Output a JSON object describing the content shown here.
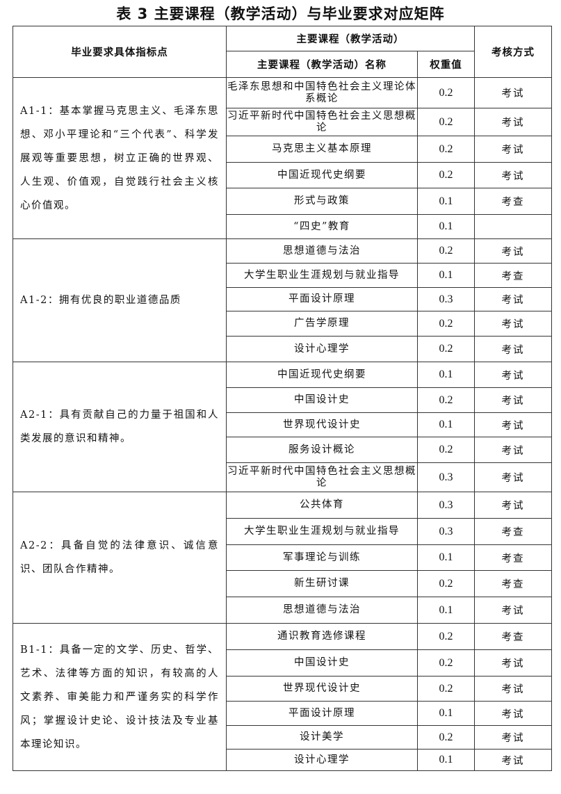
{
  "title": "表 3  主要课程（教学活动）与毕业要求对应矩阵",
  "headers": {
    "indicator": "毕业要求具体指标点",
    "courses_group": "主要课程（教学活动）",
    "course_name": "主要课程（教学活动）名称",
    "weight": "权重值",
    "assessment": "考核方式"
  },
  "groups": [
    {
      "indicator": "A1-1：基本掌握马克思主义、毛泽东思想、邓小平理论和“三个代表”、科学发展观等重要思想，树立正确的世界观、人生观、价值观，自觉践行社会主义核心价值观。",
      "rows": [
        {
          "course": "毛泽东思想和中国特色社会主义理论体系概论",
          "weight": "0.2",
          "method": "考试"
        },
        {
          "course": "习近平新时代中国特色社会主义思想概论",
          "weight": "0.2",
          "method": "考试"
        },
        {
          "course": "马克思主义基本原理",
          "weight": "0.2",
          "method": "考试"
        },
        {
          "course": "中国近现代史纲要",
          "weight": "0.2",
          "method": "考试"
        },
        {
          "course": "形式与政策",
          "weight": "0.1",
          "method": "考查"
        },
        {
          "course": "“四史”教育",
          "weight": "0.1",
          "method": ""
        }
      ]
    },
    {
      "indicator": "A1-2：拥有优良的职业道德品质",
      "rows": [
        {
          "course": "思想道德与法治",
          "weight": "0.2",
          "method": "考试"
        },
        {
          "course": "大学生职业生涯规划与就业指导",
          "weight": "0.1",
          "method": "考查"
        },
        {
          "course": "平面设计原理",
          "weight": "0.3",
          "method": "考试"
        },
        {
          "course": "广告学原理",
          "weight": "0.2",
          "method": "考试"
        },
        {
          "course": "设计心理学",
          "weight": "0.2",
          "method": "考试"
        }
      ]
    },
    {
      "indicator": "A2-1：具有贡献自己的力量于祖国和人类发展的意识和精神。",
      "rows": [
        {
          "course": "中国近现代史纲要",
          "weight": "0.1",
          "method": "考试"
        },
        {
          "course": "中国设计史",
          "weight": "0.2",
          "method": "考试"
        },
        {
          "course": "世界现代设计史",
          "weight": "0.1",
          "method": "考试"
        },
        {
          "course": "服务设计概论",
          "weight": "0.2",
          "method": "考试"
        },
        {
          "course": "习近平新时代中国特色社会主义思想概论",
          "weight": "0.3",
          "method": "考试"
        }
      ]
    },
    {
      "indicator": "A2-2：具备自觉的法律意识、诚信意识、团队合作精神。",
      "rows": [
        {
          "course": "公共体育",
          "weight": "0.3",
          "method": "考试"
        },
        {
          "course": "大学生职业生涯规划与就业指导",
          "weight": "0.3",
          "method": "考查"
        },
        {
          "course": "军事理论与训练",
          "weight": "0.1",
          "method": "考查"
        },
        {
          "course": "新生研讨课",
          "weight": "0.2",
          "method": "考查"
        },
        {
          "course": "思想道德与法治",
          "weight": "0.1",
          "method": "考试"
        }
      ]
    },
    {
      "indicator": "B1-1：具备一定的文学、历史、哲学、艺术、法律等方面的知识，有较高的人文素养、审美能力和严谨务实的科学作风；掌握设计史论、设计技法及专业基本理论知识。",
      "rows": [
        {
          "course": "通识教育选修课程",
          "weight": "0.2",
          "method": "考查"
        },
        {
          "course": "中国设计史",
          "weight": "0.2",
          "method": "考试"
        },
        {
          "course": "世界现代设计史",
          "weight": "0.2",
          "method": "考试"
        },
        {
          "course": "平面设计原理",
          "weight": "0.1",
          "method": "考试"
        },
        {
          "course": "设计美学",
          "weight": "0.2",
          "method": "考试"
        },
        {
          "course": "设计心理学",
          "weight": "0.1",
          "method": "考试"
        }
      ]
    }
  ]
}
